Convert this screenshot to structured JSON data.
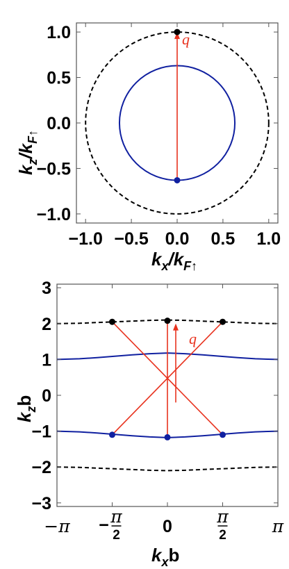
{
  "colors": {
    "solid": "#1020a0",
    "dashed": "#000000",
    "arrow": "#e8321e",
    "frame": "#555555"
  },
  "chart_data": [
    {
      "type": "line",
      "title": "",
      "xlabel": "k_x/k_F↑",
      "ylabel": "k_z/k_F↑",
      "xlim": [
        -1.1,
        1.1
      ],
      "ylim": [
        -1.1,
        1.1
      ],
      "xticks": [
        "−1.0",
        "−0.5",
        "0.0",
        "0.5",
        "1.0"
      ],
      "xtick_values": [
        -1.0,
        -0.5,
        0.0,
        0.5,
        1.0
      ],
      "yticks": [
        "−1.0",
        "−0.5",
        "0.0",
        "0.5",
        "1.0"
      ],
      "ytick_values": [
        -1.0,
        -0.5,
        0.0,
        0.5,
        1.0
      ],
      "curves": [
        {
          "style": "dashed",
          "shape": "circle",
          "center": [
            0,
            0
          ],
          "radius": 1.0
        },
        {
          "style": "solid",
          "shape": "circle",
          "center": [
            0,
            0
          ],
          "radius": 0.63
        }
      ],
      "points": [
        {
          "x": 0.0,
          "y": 1.0,
          "color": "black"
        },
        {
          "x": 0.0,
          "y": -0.63,
          "color": "blue"
        }
      ],
      "arrows": [
        {
          "from": [
            0.0,
            -0.63
          ],
          "to": [
            0.0,
            1.0
          ]
        }
      ],
      "annotation": "q⃗"
    },
    {
      "type": "line",
      "title": "",
      "xlabel": "k_x b",
      "ylabel": "k_z b",
      "xlim": [
        -3.1416,
        3.1416
      ],
      "ylim": [
        -3.1,
        3.1
      ],
      "xticks": [
        "−π",
        "−π/2",
        "0",
        "π/2",
        "π"
      ],
      "xtick_values": [
        -3.1416,
        -1.5708,
        0,
        1.5708,
        3.1416
      ],
      "yticks": [
        "3",
        "2",
        "1",
        "0",
        "−1",
        "−2",
        "−3"
      ],
      "ytick_values": [
        3,
        2,
        1,
        0,
        -1,
        -2,
        -3
      ],
      "series": [
        {
          "style": "dashed",
          "x": [
            -3.1416,
            -2.5,
            -2.0,
            -1.5,
            -1.0,
            -0.5,
            0.0,
            0.5,
            1.0,
            1.5,
            2.0,
            2.5,
            3.1416
          ],
          "y": [
            2.0,
            2.01,
            2.03,
            2.05,
            2.07,
            2.09,
            2.1,
            2.09,
            2.07,
            2.05,
            2.03,
            2.01,
            2.0
          ]
        },
        {
          "style": "solid",
          "x": [
            -3.1416,
            -2.5,
            -2.0,
            -1.5,
            -1.0,
            -0.5,
            0.0,
            0.5,
            1.0,
            1.5,
            2.0,
            2.5,
            3.1416
          ],
          "y": [
            1.0,
            1.02,
            1.05,
            1.09,
            1.13,
            1.16,
            1.18,
            1.16,
            1.13,
            1.09,
            1.05,
            1.02,
            1.0
          ]
        },
        {
          "style": "solid",
          "x": [
            -3.1416,
            -2.5,
            -2.0,
            -1.5,
            -1.0,
            -0.5,
            0.0,
            0.5,
            1.0,
            1.5,
            2.0,
            2.5,
            3.1416
          ],
          "y": [
            -1.0,
            -1.02,
            -1.05,
            -1.09,
            -1.13,
            -1.16,
            -1.18,
            -1.16,
            -1.13,
            -1.09,
            -1.05,
            -1.02,
            -1.0
          ]
        },
        {
          "style": "dashed",
          "x": [
            -3.1416,
            -2.5,
            -2.0,
            -1.5,
            -1.0,
            -0.5,
            0.0,
            0.5,
            1.0,
            1.5,
            2.0,
            2.5,
            3.1416
          ],
          "y": [
            -2.0,
            -2.01,
            -2.03,
            -2.05,
            -2.07,
            -2.09,
            -2.1,
            -2.09,
            -2.07,
            -2.05,
            -2.03,
            -2.01,
            -2.0
          ]
        }
      ],
      "points": [
        {
          "x": -1.5708,
          "y": 2.05,
          "color": "black"
        },
        {
          "x": 0.0,
          "y": 2.08,
          "color": "black"
        },
        {
          "x": 1.5708,
          "y": 2.05,
          "color": "black"
        },
        {
          "x": -1.5708,
          "y": -1.1,
          "color": "blue"
        },
        {
          "x": 0.0,
          "y": -1.17,
          "color": "blue"
        },
        {
          "x": 1.5708,
          "y": -1.1,
          "color": "blue"
        }
      ],
      "arrows": [
        {
          "from": [
            0.0,
            -1.17
          ],
          "to": [
            0.0,
            2.08
          ]
        }
      ],
      "segments": [
        {
          "from": [
            -1.5708,
            -1.1
          ],
          "to": [
            1.5708,
            2.05
          ]
        },
        {
          "from": [
            1.5708,
            -1.1
          ],
          "to": [
            -1.5708,
            2.05
          ]
        }
      ],
      "annotation": "q⃗"
    }
  ]
}
